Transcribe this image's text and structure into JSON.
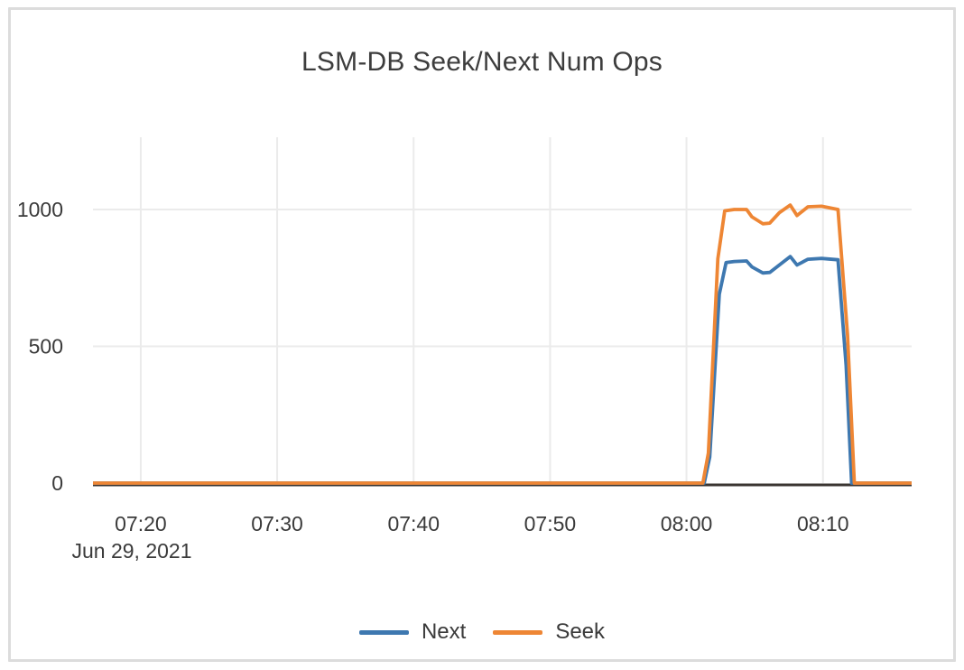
{
  "chart": {
    "title": "LSM-DB Seek/Next Num Ops"
  },
  "colors": {
    "grid": "#ebebeb",
    "zeroline": "#3a3531",
    "next_blue": "#3e78b0",
    "seek_orange": "#ee8634",
    "text": "#3a3a3a",
    "title_text": "#3d3d3d",
    "frame_border": "#dcdcdc"
  },
  "chart_data": {
    "type": "line",
    "title": "LSM-DB Seek/Next Num Ops",
    "xlabel": "",
    "ylabel": "",
    "x_unit": "minutes after 07:00, Jun 29, 2021",
    "x_date_label": "Jun 29, 2021",
    "xlim": [
      16.5,
      76.5
    ],
    "ylim": [
      0,
      1264
    ],
    "x_tick_minutes": [
      20,
      30,
      40,
      50,
      60,
      70
    ],
    "x_tick_labels": [
      "07:20",
      "07:30",
      "07:40",
      "07:50",
      "08:00",
      "08:10"
    ],
    "y_ticks": [
      0,
      500,
      1000
    ],
    "y_tick_labels": [
      "0",
      "500",
      "1000"
    ],
    "grid": true,
    "legend_position": "bottom",
    "series": [
      {
        "name": "Next",
        "color": "#3e78b0",
        "points": [
          [
            16.5,
            0
          ],
          [
            20,
            0
          ],
          [
            25,
            0
          ],
          [
            30,
            0
          ],
          [
            35,
            0
          ],
          [
            40,
            0
          ],
          [
            45,
            0
          ],
          [
            50,
            0
          ],
          [
            55,
            0
          ],
          [
            60,
            0
          ],
          [
            61.3,
            0
          ],
          [
            61.7,
            95
          ],
          [
            62.4,
            690
          ],
          [
            62.9,
            806
          ],
          [
            63.5,
            810
          ],
          [
            64.4,
            812
          ],
          [
            64.8,
            790
          ],
          [
            65.6,
            768
          ],
          [
            66.1,
            770
          ],
          [
            66.8,
            797
          ],
          [
            67.6,
            828
          ],
          [
            68.1,
            797
          ],
          [
            68.9,
            818
          ],
          [
            69.9,
            821
          ],
          [
            71.1,
            816
          ],
          [
            71.7,
            430
          ],
          [
            72.1,
            0
          ],
          [
            73.5,
            0
          ],
          [
            75,
            0
          ],
          [
            76.5,
            0
          ]
        ]
      },
      {
        "name": "Seek",
        "color": "#ee8634",
        "points": [
          [
            16.5,
            0
          ],
          [
            20,
            0
          ],
          [
            25,
            0
          ],
          [
            30,
            0
          ],
          [
            35,
            0
          ],
          [
            40,
            0
          ],
          [
            45,
            0
          ],
          [
            50,
            0
          ],
          [
            55,
            0
          ],
          [
            60,
            0
          ],
          [
            61.2,
            0
          ],
          [
            61.6,
            110
          ],
          [
            62.3,
            820
          ],
          [
            62.8,
            995
          ],
          [
            63.5,
            1000
          ],
          [
            64.4,
            1000
          ],
          [
            64.8,
            973
          ],
          [
            65.6,
            948
          ],
          [
            66.1,
            950
          ],
          [
            66.8,
            988
          ],
          [
            67.6,
            1016
          ],
          [
            68.1,
            978
          ],
          [
            68.9,
            1010
          ],
          [
            69.9,
            1012
          ],
          [
            71.1,
            1000
          ],
          [
            71.8,
            540
          ],
          [
            72.3,
            0
          ],
          [
            73.5,
            0
          ],
          [
            75,
            0
          ],
          [
            76.5,
            0
          ]
        ]
      }
    ]
  }
}
